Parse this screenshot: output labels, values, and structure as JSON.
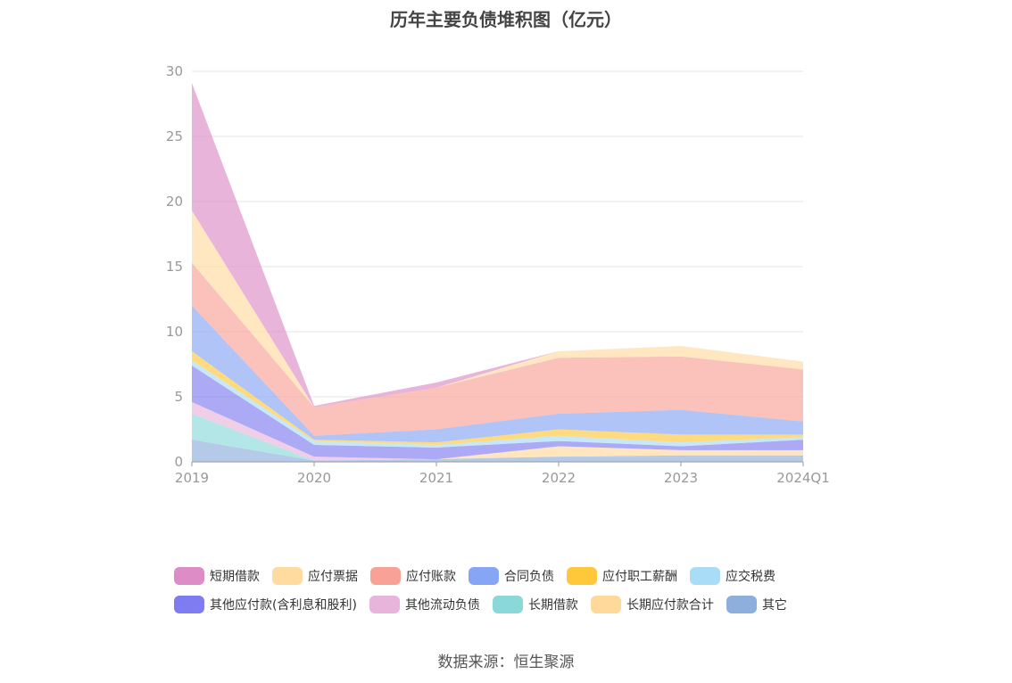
{
  "title": "历年主要负债堆积图（亿元）",
  "source": "数据来源：恒生聚源",
  "chart_data": {
    "type": "area",
    "stacked": true,
    "x": [
      "2019",
      "2020",
      "2021",
      "2022",
      "2023",
      "2024Q1"
    ],
    "ylim": [
      0,
      30
    ],
    "yticks": [
      0,
      5,
      10,
      15,
      20,
      25,
      30
    ],
    "grid": true,
    "legend_position": "bottom",
    "series": [
      {
        "name": "其它",
        "color": "#8eaedb",
        "values": [
          1.7,
          0.1,
          0.2,
          0.4,
          0.5,
          0.5
        ]
      },
      {
        "name": "长期应付款合计",
        "color": "#ffd89b",
        "values": [
          0,
          0,
          0,
          0.8,
          0.4,
          0.4
        ]
      },
      {
        "name": "长期借款",
        "color": "#8bd8d8",
        "values": [
          2.0,
          0,
          0,
          0,
          0,
          0
        ]
      },
      {
        "name": "其他流动负债",
        "color": "#e8b4dc",
        "values": [
          0.9,
          0.3,
          0,
          0,
          0,
          0
        ]
      },
      {
        "name": "其他应付款(含利息和股利)",
        "color": "#7f7bf0",
        "values": [
          2.8,
          0.9,
          0.9,
          0.4,
          0.3,
          0.8
        ]
      },
      {
        "name": "应交税费",
        "color": "#a8dcf7",
        "values": [
          0.4,
          0.3,
          0.2,
          0.4,
          0.3,
          0.2
        ]
      },
      {
        "name": "应付职工薪酬",
        "color": "#ffc73a",
        "values": [
          0.7,
          0.1,
          0.2,
          0.5,
          0.6,
          0.2
        ]
      },
      {
        "name": "合同负债",
        "color": "#86a5f5",
        "values": [
          3.5,
          0.3,
          1.0,
          1.2,
          1.9,
          1.0
        ]
      },
      {
        "name": "应付账款",
        "color": "#f8a297",
        "values": [
          3.3,
          2.2,
          3.2,
          4.3,
          4.1,
          4.0
        ]
      },
      {
        "name": "应付票据",
        "color": "#ffdba0",
        "values": [
          4.0,
          0,
          0,
          0.5,
          0.8,
          0.6
        ]
      },
      {
        "name": "短期借款",
        "color": "#dd8cc6",
        "values": [
          9.8,
          0.1,
          0.4,
          0,
          0,
          0
        ]
      }
    ]
  },
  "legend": {
    "row1": [
      {
        "label": "短期借款",
        "color": "#dd8cc6"
      },
      {
        "label": "应付票据",
        "color": "#ffdba0"
      },
      {
        "label": "应付账款",
        "color": "#f8a297"
      },
      {
        "label": "合同负债",
        "color": "#86a5f5"
      },
      {
        "label": "应付职工薪酬",
        "color": "#ffc73a"
      },
      {
        "label": "应交税费",
        "color": "#a8dcf7"
      }
    ],
    "row2": [
      {
        "label": "其他应付款(含利息和股利)",
        "color": "#7f7bf0"
      },
      {
        "label": "其他流动负债",
        "color": "#e8b4dc"
      },
      {
        "label": "长期借款",
        "color": "#8bd8d8"
      },
      {
        "label": "长期应付款合计",
        "color": "#ffd89b"
      },
      {
        "label": "其它",
        "color": "#8eaedb"
      }
    ]
  }
}
